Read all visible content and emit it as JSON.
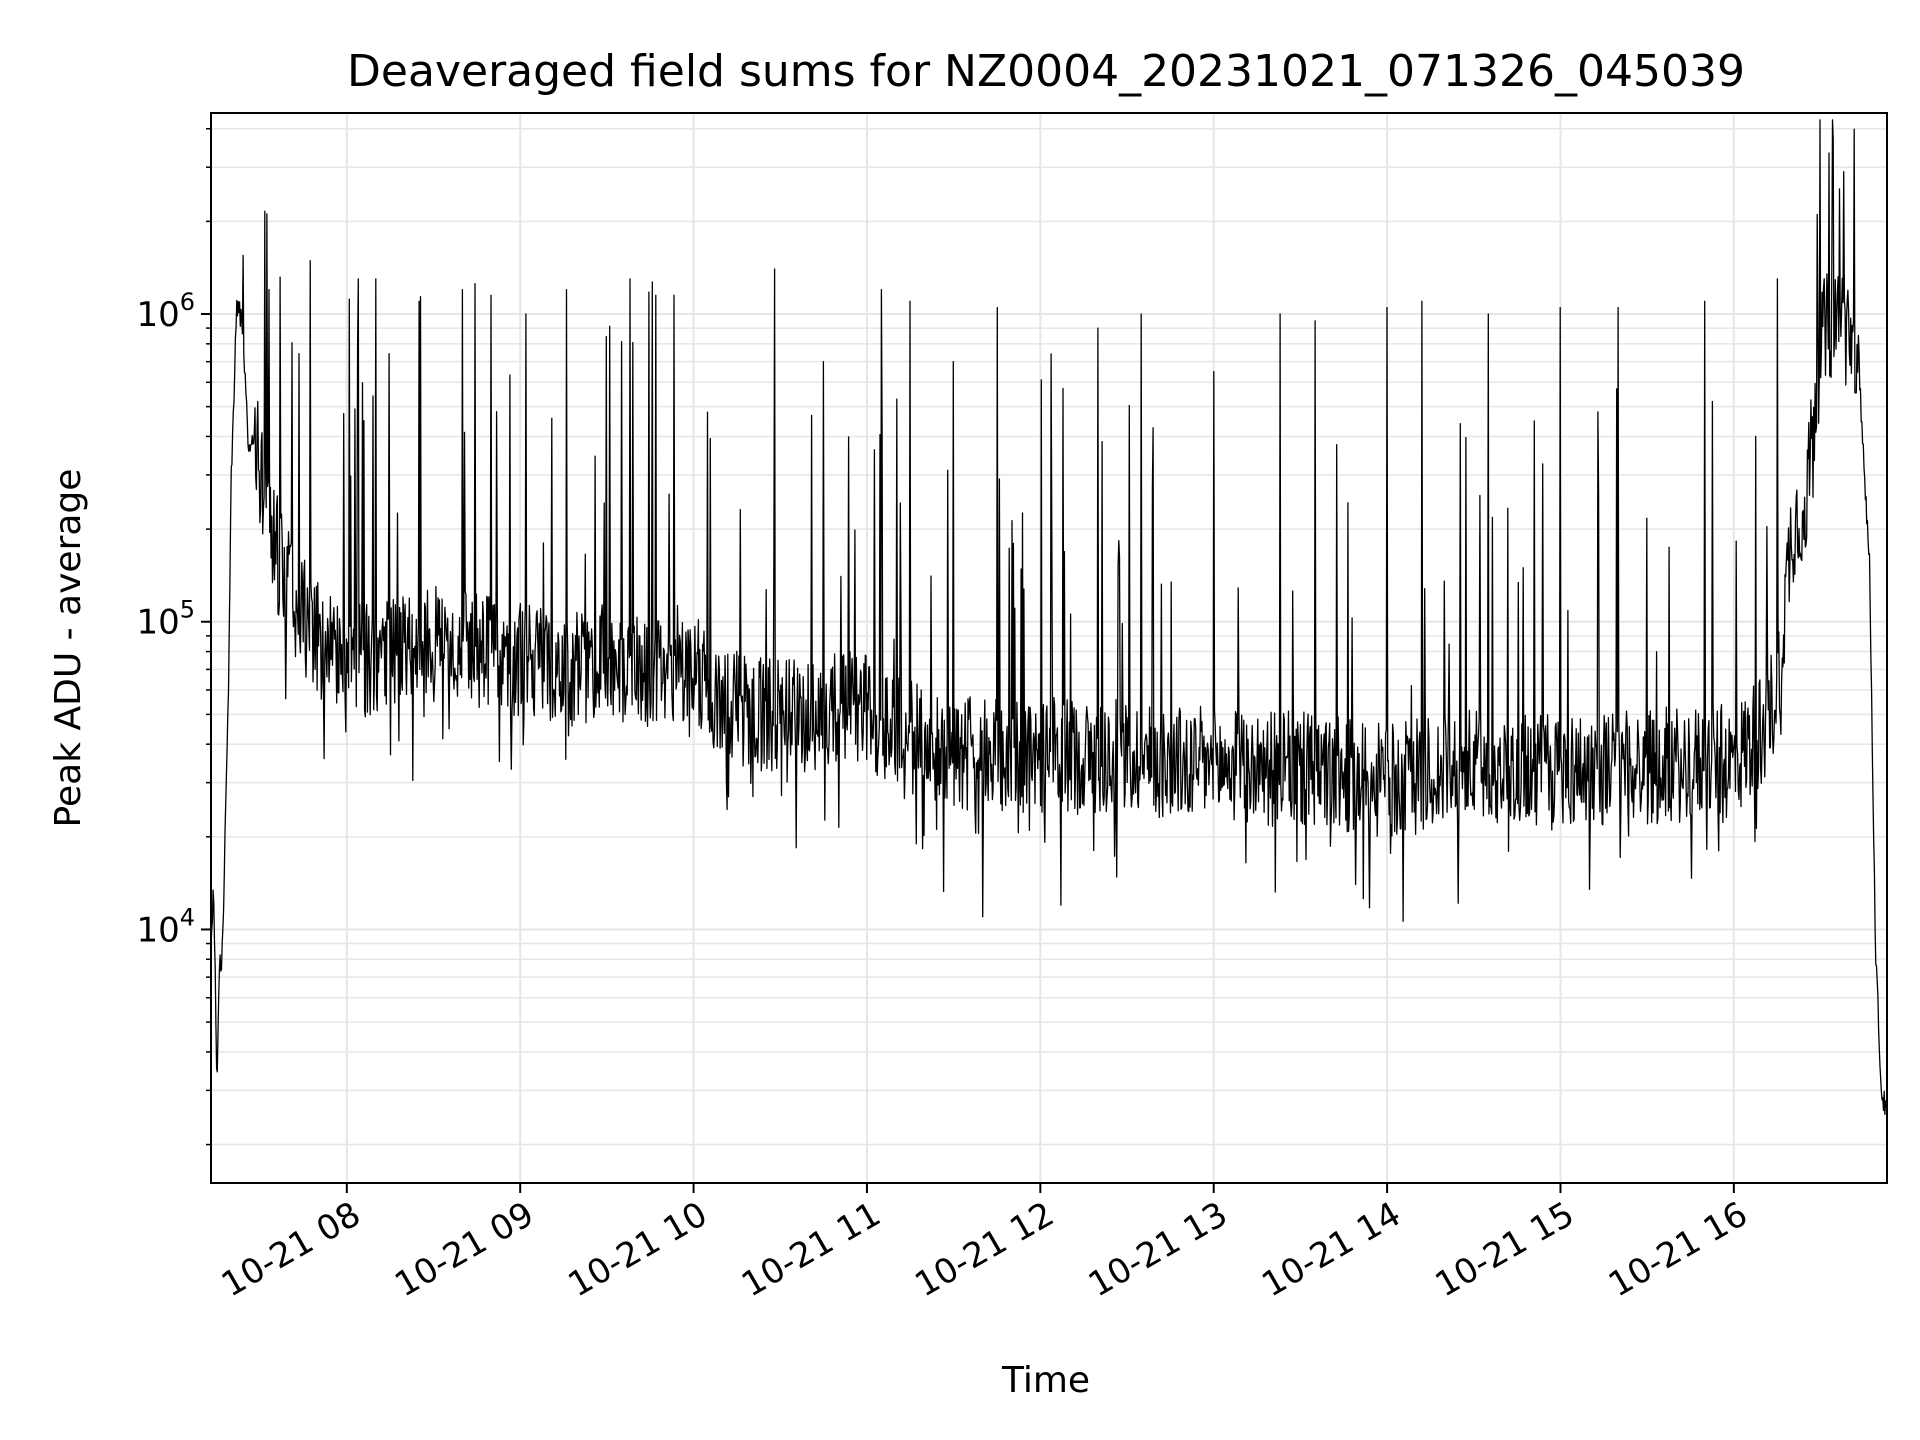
{
  "chart_data": {
    "type": "line",
    "title": "Deaveraged field sums for NZ0004_20231021_071326_045039",
    "xlabel": "Time",
    "ylabel": "Peak ADU - average",
    "yscale": "log",
    "grid": true,
    "xlim": [
      "2023-10-21 07:13",
      "2023-10-21 16:53"
    ],
    "ylim": [
      1500,
      4500000
    ],
    "x_ticks": [
      "10-21 08",
      "10-21 09",
      "10-21 10",
      "10-21 11",
      "10-21 12",
      "10-21 13",
      "10-21 14",
      "10-21 15",
      "10-21 16"
    ],
    "y_ticks": [
      {
        "base": "10",
        "exp": "4",
        "value": 10000
      },
      {
        "base": "10",
        "exp": "5",
        "value": 100000
      },
      {
        "base": "10",
        "exp": "6",
        "value": 1000000
      }
    ],
    "line_color": "#000000",
    "series": [
      {
        "x": [
          "2023-10-21 07:13",
          "2023-10-21 07:14",
          "2023-10-21 07:15",
          "2023-10-21 07:16",
          "2023-10-21 07:17",
          "2023-10-21 07:19",
          "2023-10-21 07:20",
          "2023-10-21 07:22",
          "2023-10-21 07:24",
          "2023-10-21 07:26",
          "2023-10-21 07:28",
          "2023-10-21 07:30",
          "2023-10-21 07:32",
          "2023-10-21 07:35",
          "2023-10-21 07:38",
          "2023-10-21 07:42",
          "2023-10-21 07:47",
          "2023-10-21 07:52",
          "2023-10-21 07:57",
          "2023-10-21 08:05",
          "2023-10-21 08:15",
          "2023-10-21 08:30",
          "2023-10-21 08:45",
          "2023-10-21 09:00",
          "2023-10-21 09:15",
          "2023-10-21 09:30",
          "2023-10-21 09:45",
          "2023-10-21 10:00",
          "2023-10-21 10:08",
          "2023-10-21 10:20",
          "2023-10-21 10:40",
          "2023-10-21 10:55",
          "2023-10-21 11:05",
          "2023-10-21 11:20",
          "2023-10-21 11:40",
          "2023-10-21 12:00",
          "2023-10-21 12:30",
          "2023-10-21 13:00",
          "2023-10-21 13:30",
          "2023-10-21 14:00",
          "2023-10-21 14:30",
          "2023-10-21 15:00",
          "2023-10-21 15:30",
          "2023-10-21 16:00",
          "2023-10-21 16:10",
          "2023-10-21 16:15",
          "2023-10-21 16:20",
          "2023-10-21 16:25",
          "2023-10-21 16:30",
          "2023-10-21 16:35",
          "2023-10-21 16:40",
          "2023-10-21 16:44",
          "2023-10-21 16:47",
          "2023-10-21 16:49",
          "2023-10-21 16:51",
          "2023-10-21 16:53"
        ],
        "y": [
          9500,
          13500,
          3200,
          7500,
          8500,
          60000,
          300000,
          1100000,
          900000,
          350000,
          400000,
          300000,
          250000,
          180000,
          140000,
          120000,
          95000,
          85000,
          75000,
          75000,
          80000,
          85000,
          80000,
          75000,
          70000,
          75000,
          70000,
          75000,
          55000,
          50000,
          50000,
          55000,
          45000,
          40000,
          36000,
          37000,
          36000,
          34000,
          33000,
          30000,
          34000,
          33000,
          34000,
          35000,
          45000,
          60000,
          200000,
          250000,
          800000,
          1000000,
          900000,
          500000,
          150000,
          9000,
          3000,
          2500
        ]
      }
    ],
    "spike_peaks": [
      {
        "x": "2023-10-21 07:24",
        "y": 1550000
      },
      {
        "x": "2023-10-21 07:33",
        "y": 1200000
      },
      {
        "x": "2023-10-21 08:04",
        "y": 1300000
      },
      {
        "x": "2023-10-21 08:10",
        "y": 1300000
      },
      {
        "x": "2023-10-21 08:25",
        "y": 1100000
      },
      {
        "x": "2023-10-21 08:40",
        "y": 1200000
      },
      {
        "x": "2023-10-21 08:50",
        "y": 1150000
      },
      {
        "x": "2023-10-21 09:02",
        "y": 1000000
      },
      {
        "x": "2023-10-21 09:16",
        "y": 1200000
      },
      {
        "x": "2023-10-21 09:38",
        "y": 1300000
      },
      {
        "x": "2023-10-21 09:47",
        "y": 1150000
      },
      {
        "x": "2023-10-21 10:28",
        "y": 1400000
      },
      {
        "x": "2023-10-21 10:45",
        "y": 700000
      },
      {
        "x": "2023-10-21 11:05",
        "y": 1200000
      },
      {
        "x": "2023-10-21 11:15",
        "y": 1100000
      },
      {
        "x": "2023-10-21 11:30",
        "y": 700000
      },
      {
        "x": "2023-10-21 11:45",
        "y": 1050000
      },
      {
        "x": "2023-10-21 12:20",
        "y": 900000
      },
      {
        "x": "2023-10-21 12:35",
        "y": 1000000
      },
      {
        "x": "2023-10-21 13:00",
        "y": 650000
      },
      {
        "x": "2023-10-21 13:23",
        "y": 1000000
      },
      {
        "x": "2023-10-21 13:35",
        "y": 950000
      },
      {
        "x": "2023-10-21 14:00",
        "y": 1050000
      },
      {
        "x": "2023-10-21 14:12",
        "y": 1100000
      },
      {
        "x": "2023-10-21 14:35",
        "y": 1000000
      },
      {
        "x": "2023-10-21 15:00",
        "y": 1050000
      },
      {
        "x": "2023-10-21 15:20",
        "y": 1050000
      },
      {
        "x": "2023-10-21 15:50",
        "y": 1100000
      },
      {
        "x": "2023-10-21 16:15",
        "y": 1300000
      },
      {
        "x": "2023-10-21 16:38",
        "y": 2900000
      }
    ],
    "dip_troughs": [
      {
        "x": "2023-10-21 11:40",
        "y": 11000
      },
      {
        "x": "2023-10-21 12:07",
        "y": 12000
      },
      {
        "x": "2023-10-21 13:49",
        "y": 14000
      },
      {
        "x": "2023-10-21 15:10",
        "y": 13500
      },
      {
        "x": "2023-10-21 08:18",
        "y": 41000
      },
      {
        "x": "2023-10-21 10:12",
        "y": 27000
      }
    ]
  }
}
